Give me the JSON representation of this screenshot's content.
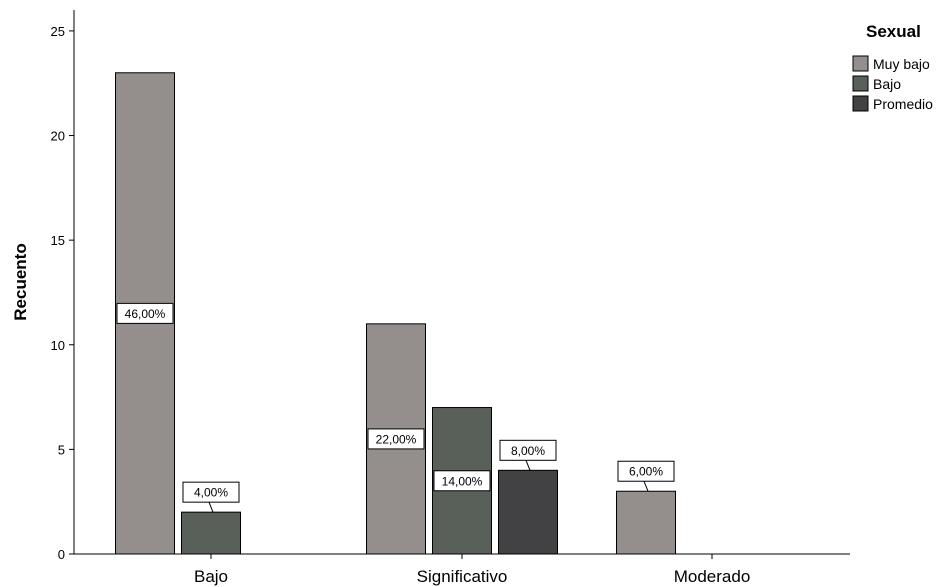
{
  "chart_data": {
    "type": "bar",
    "ylabel": "Recuento",
    "ylim": [
      0,
      26
    ],
    "yticks": [
      0,
      5,
      10,
      15,
      20,
      25
    ],
    "categories": [
      "Bajo",
      "Significativo",
      "Moderado"
    ],
    "legend": {
      "title": "Sexual",
      "placement": "top-right"
    },
    "series": [
      {
        "name": "Muy bajo",
        "color": "#948f8c",
        "values": [
          23,
          11,
          3
        ],
        "labels": [
          "46,00%",
          "22,00%",
          "6,00%"
        ]
      },
      {
        "name": "Bajo",
        "color": "#59605a",
        "values": [
          2,
          7,
          null
        ],
        "labels": [
          "4,00%",
          "14,00%",
          null
        ]
      },
      {
        "name": "Promedio",
        "color": "#424244",
        "values": [
          null,
          4,
          null
        ],
        "labels": [
          null,
          "8,00%",
          null
        ]
      }
    ],
    "grid": false
  }
}
